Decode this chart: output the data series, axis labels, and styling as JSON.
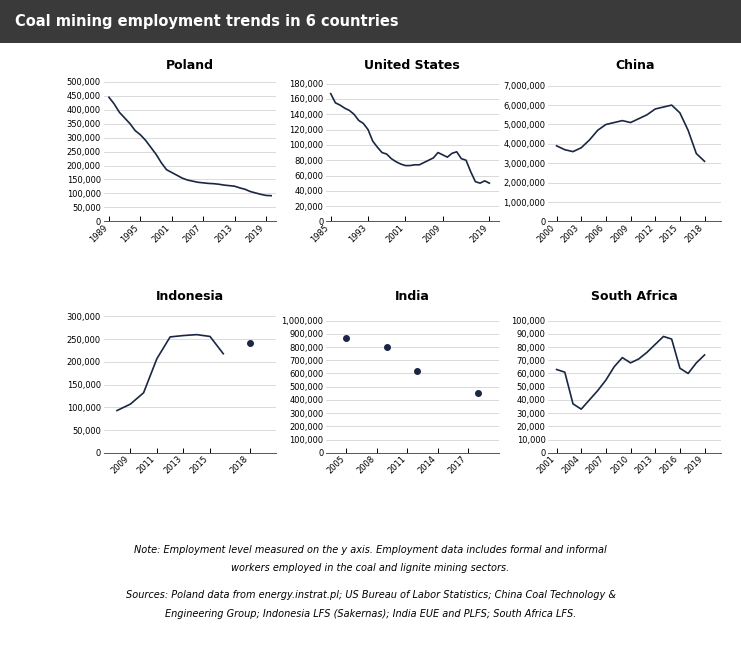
{
  "title": "Coal mining employment trends in 6 countries",
  "title_bg": "#3a3a3a",
  "title_color": "#ffffff",
  "line_color": "#1a2744",
  "background_color": "#ffffff",
  "note1": "Note: Employment level measured on the y axis. Employment data includes formal and informal",
  "note2": "workers employed in the coal and lignite mining sectors.",
  "src1": "Sources: Poland data from energy.instrat.pl; US Bureau of Labor Statistics; China Coal Technology &",
  "src2": "Engineering Group; Indonesia LFS (Sakernas); India EUE and PLFS; South Africa LFS.",
  "subplots": [
    {
      "title": "Poland",
      "x": [
        1989,
        1990,
        1991,
        1992,
        1993,
        1994,
        1995,
        1996,
        1997,
        1998,
        1999,
        2000,
        2001,
        2002,
        2003,
        2004,
        2005,
        2006,
        2007,
        2008,
        2009,
        2010,
        2011,
        2012,
        2013,
        2014,
        2015,
        2016,
        2017,
        2018,
        2019,
        2020
      ],
      "y": [
        444000,
        420000,
        390000,
        370000,
        350000,
        325000,
        310000,
        290000,
        265000,
        240000,
        210000,
        185000,
        175000,
        165000,
        155000,
        148000,
        144000,
        140000,
        138000,
        136000,
        135000,
        133000,
        130000,
        128000,
        126000,
        120000,
        115000,
        107000,
        102000,
        97000,
        93000,
        92000
      ],
      "yticks": [
        0,
        50000,
        100000,
        150000,
        200000,
        250000,
        300000,
        350000,
        400000,
        450000,
        500000
      ],
      "ylim": [
        0,
        520000
      ],
      "xticks": [
        1989,
        1995,
        2001,
        2007,
        2013,
        2019
      ],
      "xlim": [
        1988,
        2021
      ],
      "marker_only": false,
      "has_gap": false
    },
    {
      "title": "United States",
      "x": [
        1985,
        1986,
        1987,
        1988,
        1989,
        1990,
        1991,
        1992,
        1993,
        1994,
        1995,
        1996,
        1997,
        1998,
        1999,
        2000,
        2001,
        2002,
        2003,
        2004,
        2005,
        2006,
        2007,
        2008,
        2009,
        2010,
        2011,
        2012,
        2013,
        2014,
        2015,
        2016,
        2017,
        2018,
        2019
      ],
      "y": [
        167000,
        155000,
        152000,
        148000,
        145000,
        140000,
        132000,
        128000,
        120000,
        105000,
        97000,
        90000,
        88000,
        82000,
        78000,
        75000,
        73000,
        73000,
        74000,
        74000,
        77000,
        80000,
        83000,
        90000,
        87000,
        84000,
        89000,
        91000,
        82000,
        80000,
        65000,
        52000,
        50000,
        53000,
        50000
      ],
      "yticks": [
        0,
        20000,
        40000,
        60000,
        80000,
        100000,
        120000,
        140000,
        160000,
        180000
      ],
      "ylim": [
        0,
        190000
      ],
      "xticks": [
        1985,
        1993,
        2001,
        2009,
        2019
      ],
      "xlim": [
        1984,
        2021
      ],
      "marker_only": false,
      "has_gap": false
    },
    {
      "title": "China",
      "x": [
        2000,
        2001,
        2002,
        2003,
        2004,
        2005,
        2006,
        2007,
        2008,
        2009,
        2010,
        2011,
        2012,
        2013,
        2014,
        2015,
        2016,
        2017,
        2018
      ],
      "y": [
        3900000,
        3700000,
        3600000,
        3800000,
        4200000,
        4700000,
        5000000,
        5100000,
        5200000,
        5100000,
        5300000,
        5500000,
        5800000,
        5900000,
        6000000,
        5600000,
        4700000,
        3500000,
        3100000
      ],
      "yticks": [
        0,
        1000000,
        2000000,
        3000000,
        4000000,
        5000000,
        6000000,
        7000000
      ],
      "ylim": [
        0,
        7500000
      ],
      "xticks": [
        2000,
        2003,
        2006,
        2009,
        2012,
        2015,
        2018
      ],
      "xlim": [
        1999,
        2020
      ],
      "marker_only": false,
      "has_gap": false
    },
    {
      "title": "Indonesia",
      "x": [
        2008,
        2009,
        2010,
        2011,
        2012,
        2013,
        2014,
        2015,
        2016,
        2018
      ],
      "y": [
        93000,
        107000,
        132000,
        207000,
        255000,
        258000,
        260000,
        256000,
        218000,
        241000
      ],
      "x_line": [
        2008,
        2009,
        2010,
        2011,
        2012,
        2013,
        2014,
        2015,
        2016
      ],
      "y_line": [
        93000,
        107000,
        132000,
        207000,
        255000,
        258000,
        260000,
        256000,
        218000
      ],
      "x_marker": [
        2018
      ],
      "y_marker": [
        241000
      ],
      "yticks": [
        0,
        50000,
        100000,
        150000,
        200000,
        250000,
        300000
      ],
      "ylim": [
        0,
        320000
      ],
      "xticks": [
        2009,
        2011,
        2013,
        2015,
        2018
      ],
      "xlim": [
        2007,
        2020
      ],
      "marker_only": false,
      "has_gap": true
    },
    {
      "title": "India",
      "x": [
        2005,
        2009,
        2012,
        2018
      ],
      "y": [
        870000,
        800000,
        620000,
        450000
      ],
      "yticks": [
        0,
        100000,
        200000,
        300000,
        400000,
        500000,
        600000,
        700000,
        800000,
        900000,
        1000000
      ],
      "ylim": [
        0,
        1100000
      ],
      "xticks": [
        2005,
        2008,
        2011,
        2014,
        2017
      ],
      "xlim": [
        2003,
        2020
      ],
      "marker_only": true,
      "has_gap": false
    },
    {
      "title": "South Africa",
      "x": [
        2001,
        2002,
        2003,
        2004,
        2005,
        2006,
        2007,
        2008,
        2009,
        2010,
        2011,
        2012,
        2013,
        2014,
        2015,
        2016,
        2017,
        2018,
        2019
      ],
      "y": [
        63000,
        61000,
        37000,
        33000,
        40000,
        47000,
        55000,
        65000,
        72000,
        68000,
        71000,
        76000,
        82000,
        88000,
        86000,
        64000,
        60000,
        68000,
        74000
      ],
      "yticks": [
        0,
        10000,
        20000,
        30000,
        40000,
        50000,
        60000,
        70000,
        80000,
        90000,
        100000
      ],
      "ylim": [
        0,
        110000
      ],
      "xticks": [
        2001,
        2004,
        2007,
        2010,
        2013,
        2016,
        2019
      ],
      "xlim": [
        2000,
        2021
      ],
      "marker_only": false,
      "has_gap": false
    }
  ]
}
